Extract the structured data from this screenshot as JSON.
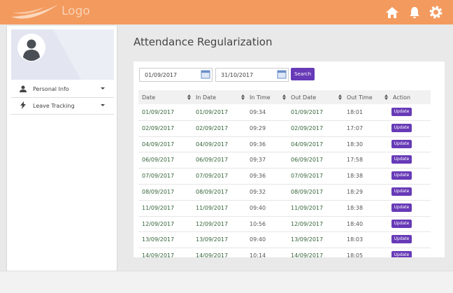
{
  "header": {
    "logo": "Logo"
  },
  "sidebar": {
    "menu": [
      "Personal Info",
      "Leave Tracking"
    ]
  },
  "page": {
    "title": "Attendance Regularization"
  },
  "filter": {
    "from": "01/09/2017",
    "to": "31/10/2017",
    "button": "Search"
  },
  "table": {
    "columns": [
      "Date",
      "In Date",
      "In Time",
      "Out Date",
      "Out Time",
      "Action"
    ],
    "rows": [
      [
        "01/09/2017",
        "01/09/2017",
        "09:34",
        "01/09/2017",
        "18:01",
        "Update"
      ],
      [
        "02/09/2017",
        "02/09/2017",
        "09:29",
        "02/09/2017",
        "17:07",
        "Update"
      ],
      [
        "04/09/2017",
        "04/09/2017",
        "09:36",
        "04/09/2017",
        "18:30",
        "Update"
      ],
      [
        "06/09/2017",
        "06/09/2017",
        "09:37",
        "06/09/2017",
        "17:58",
        "Update"
      ],
      [
        "07/09/2017",
        "07/09/2017",
        "09:36",
        "07/09/2017",
        "18:38",
        "Update"
      ],
      [
        "08/09/2017",
        "08/09/2017",
        "09:32",
        "08/09/2017",
        "18:29",
        "Update"
      ],
      [
        "11/09/2017",
        "11/09/2017",
        "09:40",
        "11/09/2017",
        "18:38",
        "Update"
      ],
      [
        "12/09/2017",
        "12/09/2017",
        "10:56",
        "12/09/2017",
        "18:40",
        "Update"
      ],
      [
        "13/09/2017",
        "13/09/2017",
        "09:40",
        "13/09/2017",
        "18:03",
        "Update"
      ],
      [
        "14/09/2017",
        "14/09/2017",
        "10:14",
        "14/09/2017",
        "18:05",
        "Update"
      ]
    ]
  }
}
